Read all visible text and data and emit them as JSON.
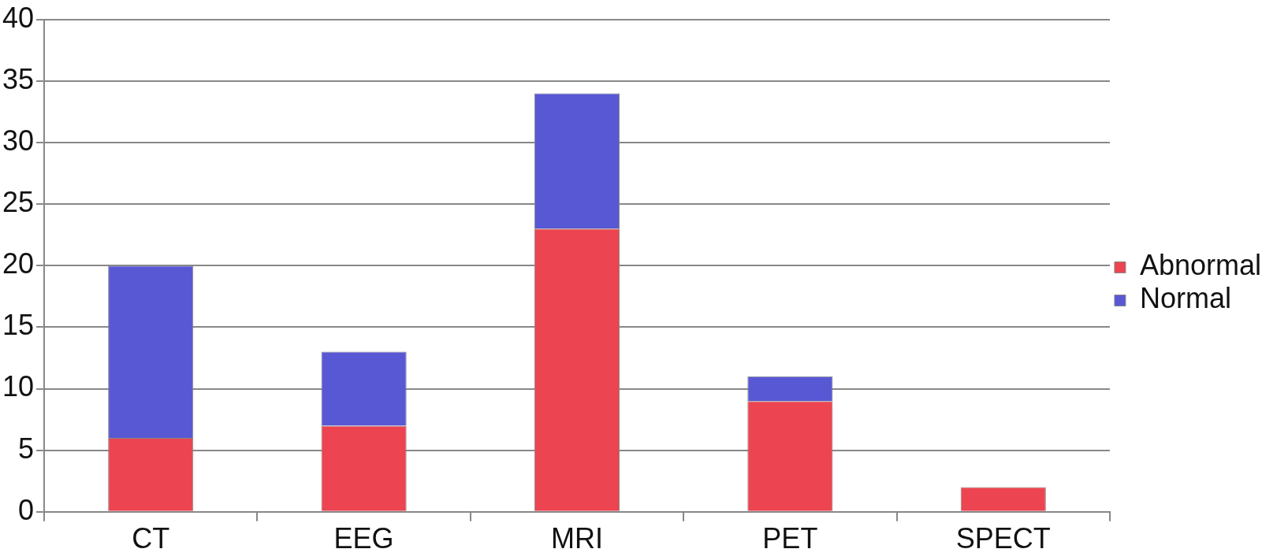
{
  "chart_data": {
    "type": "bar",
    "stacked": true,
    "categories": [
      "CT",
      "EEG",
      "MRI",
      "PET",
      "SPECT"
    ],
    "series": [
      {
        "name": "Abnormal",
        "color": "#ec4450",
        "values": [
          6,
          7,
          23,
          9,
          2
        ]
      },
      {
        "name": "Normal",
        "color": "#5858d4",
        "values": [
          14,
          6,
          11,
          2,
          0
        ]
      }
    ],
    "ylim": [
      0,
      40
    ],
    "yticks": [
      0,
      5,
      10,
      15,
      20,
      25,
      30,
      35,
      40
    ],
    "grid": "y",
    "legend": "right"
  }
}
